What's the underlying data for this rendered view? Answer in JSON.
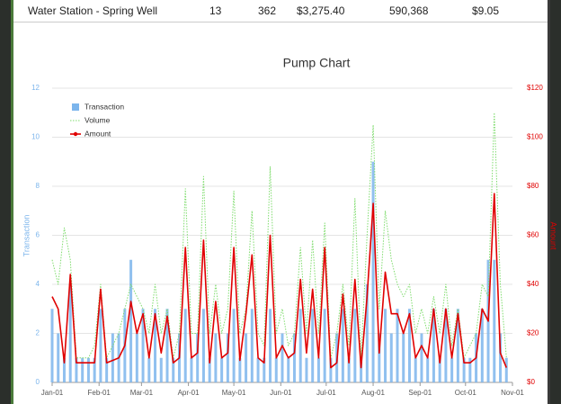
{
  "table_row": [
    "Water Station - Spring Well",
    "13",
    "362",
    "$3,275.40",
    "590,368",
    "$9.05"
  ],
  "chart_data": {
    "type": "combo",
    "title": "Pump Chart",
    "ylabel": "Transaction",
    "y2label": "Amount",
    "xlim": [
      0,
      304
    ],
    "xticks": [
      {
        "value": 0,
        "label": "Jan-01"
      },
      {
        "value": 31,
        "label": "Feb-01"
      },
      {
        "value": 59,
        "label": "Mar-01"
      },
      {
        "value": 90,
        "label": "Apr-01"
      },
      {
        "value": 120,
        "label": "May-01"
      },
      {
        "value": 151,
        "label": "Jun-01"
      },
      {
        "value": 181,
        "label": "Jul-01"
      },
      {
        "value": 212,
        "label": "Aug-01"
      },
      {
        "value": 243,
        "label": "Sep-01"
      },
      {
        "value": 273,
        "label": "Oct-01"
      },
      {
        "value": 304,
        "label": "Nov-01"
      }
    ],
    "ylim": [
      0,
      12
    ],
    "yticks": [
      0,
      2,
      4,
      6,
      8,
      10,
      12
    ],
    "y2lim": [
      0,
      120
    ],
    "y2ticks": [
      {
        "value": 0,
        "label": "$0"
      },
      {
        "value": 20,
        "label": "$20"
      },
      {
        "value": 40,
        "label": "$40"
      },
      {
        "value": 60,
        "label": "$60"
      },
      {
        "value": 80,
        "label": "$80"
      },
      {
        "value": 100,
        "label": "$100"
      },
      {
        "value": 120,
        "label": "$120"
      }
    ],
    "grid": true,
    "legend": "top-left",
    "x": [
      0,
      4,
      8,
      12,
      16,
      20,
      24,
      28,
      32,
      36,
      40,
      44,
      48,
      52,
      56,
      60,
      64,
      68,
      72,
      76,
      80,
      84,
      88,
      92,
      96,
      100,
      104,
      108,
      112,
      116,
      120,
      124,
      128,
      132,
      136,
      140,
      144,
      148,
      152,
      156,
      160,
      164,
      168,
      172,
      176,
      180,
      184,
      188,
      192,
      196,
      200,
      204,
      208,
      212,
      216,
      220,
      224,
      228,
      232,
      236,
      240,
      244,
      248,
      252,
      256,
      260,
      264,
      268,
      272,
      276,
      280,
      284,
      288,
      292,
      296,
      300
    ],
    "series": [
      {
        "name": "Transaction",
        "type": "bar",
        "color": "#7cb5ec",
        "values": [
          3,
          2,
          1,
          4,
          1,
          1,
          1,
          1,
          3,
          1,
          2,
          2,
          3,
          5,
          2,
          3,
          1,
          3,
          1,
          3,
          1,
          2,
          3,
          1,
          2,
          3,
          1,
          2,
          1,
          2,
          3,
          1,
          2,
          3,
          1,
          1,
          3,
          1,
          2,
          1,
          2,
          3,
          1,
          3,
          1,
          3,
          1,
          2,
          3,
          1,
          3,
          1,
          4,
          9,
          2,
          3,
          2,
          3,
          2,
          3,
          1,
          2,
          1,
          3,
          1,
          3,
          1,
          3,
          1,
          1,
          2,
          3,
          5,
          5,
          2,
          1
        ]
      },
      {
        "name": "Volume",
        "type": "line",
        "style": "dotted",
        "color": "#7fdc6e",
        "values": [
          5,
          4,
          6.3,
          5,
          1,
          1,
          1,
          1.5,
          4,
          1,
          1.5,
          2,
          3,
          4,
          3.5,
          3,
          2,
          4,
          2,
          3,
          1,
          2,
          7.9,
          2,
          2,
          8.4,
          2,
          4,
          2,
          3,
          7.8,
          2,
          3,
          7,
          2,
          1.5,
          8.8,
          2,
          3,
          1.5,
          2,
          5.5,
          2,
          5.8,
          2,
          6.5,
          1,
          2,
          4,
          1.5,
          7.5,
          1,
          6,
          10.5,
          3,
          7,
          5,
          4,
          3.5,
          4,
          2,
          3,
          2,
          3.5,
          2,
          4,
          1.5,
          3,
          1,
          1.5,
          2,
          4,
          3.5,
          11,
          4,
          1
        ]
      },
      {
        "name": "Amount",
        "type": "line",
        "axis": "y2",
        "color": "#e00000",
        "values": [
          35,
          30,
          8,
          44,
          8,
          8,
          8,
          8,
          38,
          8,
          9,
          10,
          15,
          33,
          20,
          28,
          10,
          28,
          12,
          27,
          8,
          10,
          55,
          10,
          12,
          58,
          8,
          33,
          10,
          12,
          55,
          9,
          28,
          52,
          10,
          8,
          60,
          10,
          15,
          10,
          12,
          42,
          12,
          38,
          10,
          55,
          6,
          8,
          36,
          8,
          42,
          6,
          35,
          73,
          12,
          45,
          28,
          28,
          20,
          28,
          10,
          15,
          10,
          30,
          8,
          30,
          10,
          28,
          8,
          8,
          10,
          30,
          25,
          77,
          12,
          6
        ]
      }
    ]
  }
}
